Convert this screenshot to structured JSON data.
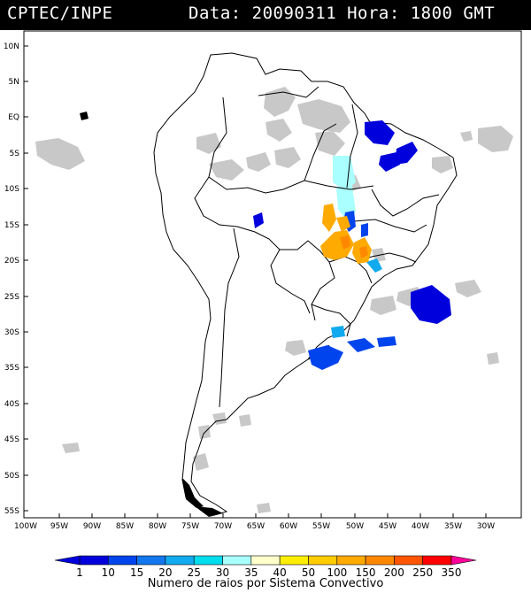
{
  "header": {
    "org": "CPTEC/INPE",
    "info": "Data: 20090311 Hora: 1800 GMT"
  },
  "map": {
    "lat_labels": [
      "10N",
      "5N",
      "EQ",
      "5S",
      "10S",
      "15S",
      "20S",
      "25S",
      "30S",
      "35S",
      "40S",
      "45S",
      "50S",
      "55S"
    ],
    "lon_labels": [
      "100W",
      "95W",
      "90W",
      "85W",
      "80W",
      "75W",
      "70W",
      "65W",
      "60W",
      "55W",
      "50W",
      "45W",
      "40W",
      "35W",
      "30W"
    ],
    "cloud_color": "#c8c8c8",
    "coast_color": "#000000"
  },
  "legend": {
    "title": "Numero de raios por Sistema Convectivo",
    "values": [
      "1",
      "10",
      "15",
      "20",
      "25",
      "30",
      "35",
      "40",
      "50",
      "100",
      "150",
      "200",
      "250",
      "350"
    ],
    "colors": [
      "#0000dd",
      "#0044ee",
      "#1177ee",
      "#11aaee",
      "#00ddee",
      "#aaffff",
      "#ffffcc",
      "#ffee00",
      "#ffcc00",
      "#ffaa00",
      "#ff8800",
      "#ff5500",
      "#ff0000",
      "#ff0099"
    ]
  }
}
